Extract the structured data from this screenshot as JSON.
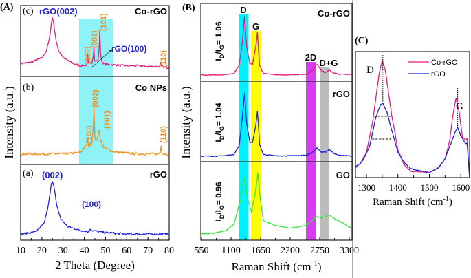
{
  "colors": {
    "co_rgo": "#e8197a",
    "co_nps": "#f0901e",
    "rgo": "#1c1ee0",
    "go": "#36e636",
    "peak_label_orange": "#f0901e",
    "peak_label_blue": "#1c1ee0",
    "xrd_band": "#8ef2f6",
    "d_band": "#00f0ff",
    "g_band": "#ffff00",
    "twod_band": "#d63cf0",
    "dg_band": "#bcbcbc"
  },
  "chart_data": [
    {
      "panel": "(A)",
      "type": "line",
      "xlabel": "2 Theta (Degree)",
      "ylabel": "Intensity (a.u.)",
      "xlim": [
        10,
        80
      ],
      "xticks": [
        "10",
        "20",
        "30",
        "40",
        "50",
        "60",
        "70",
        "80"
      ],
      "grid": false,
      "stacked": true,
      "highlight_band_x": [
        37.5,
        53.5
      ],
      "subplots": [
        {
          "tag": "(c)",
          "name": "Co-rGO",
          "color_key": "co_rgo",
          "points": [
            [
              10,
              18
            ],
            [
              15,
              20
            ],
            [
              20,
              26
            ],
            [
              22,
              35
            ],
            [
              23.5,
              52
            ],
            [
              24.5,
              75
            ],
            [
              25,
              83
            ],
            [
              25.6,
              74
            ],
            [
              27,
              45
            ],
            [
              28,
              36
            ],
            [
              30,
              27
            ],
            [
              33,
              21
            ],
            [
              35,
              18
            ],
            [
              38,
              15
            ],
            [
              41,
              16
            ],
            [
              41.4,
              22
            ],
            [
              41.6,
              30
            ],
            [
              41.9,
              18
            ],
            [
              43.5,
              19
            ],
            [
              44.3,
              30
            ],
            [
              44.5,
              42
            ],
            [
              44.8,
              22
            ],
            [
              46.5,
              22
            ],
            [
              47.0,
              40
            ],
            [
              47.3,
              66
            ],
            [
              47.7,
              30
            ],
            [
              48.5,
              19
            ],
            [
              50,
              17
            ],
            [
              55,
              16
            ],
            [
              60,
              15
            ],
            [
              65,
              15
            ],
            [
              70,
              14
            ],
            [
              75.5,
              14
            ],
            [
              76,
              19
            ],
            [
              76.4,
              14
            ],
            [
              80,
              12
            ]
          ],
          "annotations": [
            "rGO(002)",
            "(100)",
            "(002)",
            "(101)",
            "rGO(100)",
            "(110)"
          ]
        },
        {
          "tag": "(b)",
          "name": "Co NPs",
          "color_key": "co_nps",
          "points": [
            [
              10,
              12
            ],
            [
              20,
              12
            ],
            [
              30,
              12
            ],
            [
              37,
              13
            ],
            [
              39,
              15
            ],
            [
              40,
              20
            ],
            [
              41.2,
              22
            ],
            [
              41.6,
              30
            ],
            [
              42,
              20
            ],
            [
              43.5,
              25
            ],
            [
              44.2,
              42
            ],
            [
              44.6,
              63
            ],
            [
              45,
              30
            ],
            [
              46,
              27
            ],
            [
              47,
              40
            ],
            [
              47.6,
              28
            ],
            [
              49,
              20
            ],
            [
              52,
              16
            ],
            [
              55,
              14
            ],
            [
              65,
              12
            ],
            [
              75,
              12
            ],
            [
              75.8,
              14
            ],
            [
              76.2,
              21
            ],
            [
              76.6,
              13
            ],
            [
              80,
              11
            ]
          ],
          "annotations": [
            "(100)",
            "(002)",
            "(101)",
            "(110)"
          ]
        },
        {
          "tag": "(a)",
          "name": "rGO",
          "color_key": "rgo",
          "points": [
            [
              10,
              8
            ],
            [
              15,
              10
            ],
            [
              18,
              13
            ],
            [
              21,
              22
            ],
            [
              23,
              45
            ],
            [
              24.5,
              74
            ],
            [
              25,
              78
            ],
            [
              25.7,
              72
            ],
            [
              27,
              45
            ],
            [
              29,
              28
            ],
            [
              32,
              18
            ],
            [
              38,
              13
            ],
            [
              42,
              11
            ],
            [
              42.8,
              15
            ],
            [
              43.4,
              13
            ],
            [
              45,
              12
            ],
            [
              50,
              10
            ],
            [
              60,
              8
            ],
            [
              70,
              8
            ],
            [
              78,
              8
            ],
            [
              78.5,
              10
            ],
            [
              79,
              8
            ],
            [
              80,
              8
            ]
          ],
          "annotations": [
            "(002)",
            "(100)"
          ]
        }
      ]
    },
    {
      "panel": "(B)",
      "type": "line",
      "xlabel": "Raman Shift (cm-1)",
      "ylabel": "Intensity (a.u.)",
      "xlim": [
        537,
        3351
      ],
      "xticks": [
        "550",
        "1100",
        "1650",
        "2200",
        "2750",
        "3300"
      ],
      "grid": false,
      "stacked": true,
      "bands": [
        {
          "label": "D",
          "x": [
            1240,
            1420
          ],
          "color_key": "d_band"
        },
        {
          "label": "G",
          "x": [
            1470,
            1650
          ],
          "color_key": "g_band"
        },
        {
          "label": "2D",
          "x": [
            2494,
            2673
          ],
          "color_key": "twod_band"
        },
        {
          "label": "D+G",
          "x": [
            2750,
            2930
          ],
          "color_key": "dg_band"
        }
      ],
      "subplots": [
        {
          "name": "Co-rGO",
          "color_key": "co_rgo",
          "id_ig": "1.06",
          "points": [
            [
              550,
              8
            ],
            [
              900,
              8
            ],
            [
              1150,
              10
            ],
            [
              1250,
              20
            ],
            [
              1310,
              50
            ],
            [
              1350,
              84
            ],
            [
              1390,
              45
            ],
            [
              1450,
              22
            ],
            [
              1500,
              22
            ],
            [
              1560,
              45
            ],
            [
              1590,
              62
            ],
            [
              1610,
              40
            ],
            [
              1630,
              20
            ],
            [
              1700,
              10
            ],
            [
              2000,
              8
            ],
            [
              2500,
              9
            ],
            [
              2620,
              14
            ],
            [
              2700,
              22
            ],
            [
              2780,
              14
            ],
            [
              2850,
              11
            ],
            [
              2930,
              14
            ],
            [
              3000,
              11
            ],
            [
              3100,
              9
            ],
            [
              3350,
              9
            ]
          ]
        },
        {
          "name": "rGO",
          "color_key": "rgo",
          "id_ig": "1.04",
          "points": [
            [
              550,
              7
            ],
            [
              900,
              7
            ],
            [
              1150,
              9
            ],
            [
              1250,
              20
            ],
            [
              1310,
              55
            ],
            [
              1350,
              85
            ],
            [
              1390,
              48
            ],
            [
              1450,
              24
            ],
            [
              1500,
              24
            ],
            [
              1560,
              45
            ],
            [
              1590,
              62
            ],
            [
              1610,
              45
            ],
            [
              1630,
              22
            ],
            [
              1700,
              9
            ],
            [
              2000,
              7
            ],
            [
              2500,
              8
            ],
            [
              2620,
              12
            ],
            [
              2700,
              17
            ],
            [
              2780,
              12
            ],
            [
              2850,
              12
            ],
            [
              2930,
              15
            ],
            [
              3000,
              11
            ],
            [
              3100,
              8
            ],
            [
              3350,
              7
            ]
          ]
        },
        {
          "name": "GO",
          "color_key": "go",
          "id_ig": "0.96",
          "points": [
            [
              550,
              8
            ],
            [
              800,
              9
            ],
            [
              1000,
              12
            ],
            [
              1150,
              20
            ],
            [
              1250,
              45
            ],
            [
              1320,
              75
            ],
            [
              1350,
              80
            ],
            [
              1400,
              55
            ],
            [
              1480,
              36
            ],
            [
              1550,
              60
            ],
            [
              1600,
              85
            ],
            [
              1640,
              55
            ],
            [
              1700,
              25
            ],
            [
              1900,
              19
            ],
            [
              2200,
              15
            ],
            [
              2500,
              19
            ],
            [
              2700,
              30
            ],
            [
              2800,
              28
            ],
            [
              2930,
              32
            ],
            [
              3050,
              26
            ],
            [
              3150,
              23
            ],
            [
              3350,
              15
            ]
          ]
        }
      ]
    },
    {
      "panel": "(C)",
      "type": "line",
      "xlabel": "Raman Shift (cm-1)",
      "xlim": [
        1265,
        1628
      ],
      "xticks": [
        "1300",
        "1400",
        "1500",
        "1600"
      ],
      "grid": false,
      "legend": "top-right",
      "peak_labels": [
        "D",
        "G"
      ],
      "series": [
        {
          "name": "Co-rGO",
          "color_key": "co_rgo",
          "points": [
            [
              1265,
              8
            ],
            [
              1280,
              11
            ],
            [
              1300,
              20
            ],
            [
              1320,
              45
            ],
            [
              1340,
              82
            ],
            [
              1350,
              93
            ],
            [
              1360,
              85
            ],
            [
              1380,
              50
            ],
            [
              1400,
              22
            ],
            [
              1420,
              10
            ],
            [
              1440,
              5
            ],
            [
              1500,
              4
            ],
            [
              1530,
              8
            ],
            [
              1550,
              15
            ],
            [
              1565,
              30
            ],
            [
              1575,
              50
            ],
            [
              1585,
              63
            ],
            [
              1595,
              52
            ],
            [
              1605,
              32
            ],
            [
              1615,
              30
            ],
            [
              1620,
              31
            ],
            [
              1628,
              0
            ]
          ]
        },
        {
          "name": "rGO",
          "color_key": "rgo",
          "points": [
            [
              1265,
              9
            ],
            [
              1280,
              11
            ],
            [
              1290,
              14
            ],
            [
              1310,
              25
            ],
            [
              1330,
              48
            ],
            [
              1345,
              58
            ],
            [
              1352,
              59
            ],
            [
              1365,
              52
            ],
            [
              1380,
              38
            ],
            [
              1400,
              20
            ],
            [
              1420,
              12
            ],
            [
              1440,
              7
            ],
            [
              1500,
              4
            ],
            [
              1530,
              8
            ],
            [
              1550,
              15
            ],
            [
              1570,
              28
            ],
            [
              1582,
              36
            ],
            [
              1590,
              40
            ],
            [
              1600,
              33
            ],
            [
              1615,
              27
            ],
            [
              1620,
              27
            ],
            [
              1628,
              0
            ]
          ]
        }
      ]
    }
  ],
  "text": {
    "a_panel": "(A)",
    "a_c": "(c)",
    "a_b": "(b)",
    "a_a": "(a)",
    "a_c_name": "Co-rGO",
    "a_b_name": "Co NPs",
    "a_a_name": "rGO",
    "a_c_rgo002": "rGO(002)",
    "a_c_100": "(100)",
    "a_c_002": "(002)",
    "a_c_101": "(101)",
    "a_c_rgo100": "rGO(100)",
    "a_c_110": "(110)",
    "a_b_100": "(100)",
    "a_b_002": "(002)",
    "a_b_101": "(101)",
    "a_b_110": "(110)",
    "a_a_002": "(002)",
    "a_a_100": "(100)",
    "a_ylabel": "Intensity (a.u.)",
    "a_xlabel": "2 Theta (Degree)",
    "b_panel": "(B)",
    "b_d": "D",
    "b_g": "G",
    "b_2d": "2D",
    "b_dg": "D+G",
    "b_1_name": "Co-rGO",
    "b_2_name": "rGO",
    "b_3_name": "GO",
    "ratio_i": "I",
    "ratio_sub_d": "D",
    "ratio_mid": "/I",
    "ratio_sub_g": "G",
    "ratio_1": "= 1.06",
    "ratio_2": "= 1.04",
    "ratio_3": "= 0.96",
    "b_ylabel": "Intensity (a.u.)",
    "raman_prefix": "Raman Shift (cm",
    "raman_sup": "-1",
    "raman_suffix": ")",
    "c_panel": "(C)",
    "c_d": "D",
    "c_g": "G",
    "c_leg1": "Co-rGO",
    "c_leg2": "rGO"
  }
}
